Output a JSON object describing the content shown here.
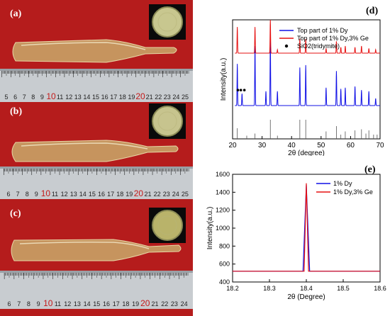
{
  "photos": [
    {
      "label": "(a)",
      "ruler_numbers": [
        "5",
        "6",
        "7",
        "8",
        "9",
        "10",
        "11",
        "12",
        "13",
        "14",
        "15",
        "16",
        "17",
        "18",
        "19",
        "20",
        "21",
        "22",
        "23",
        "24",
        "25"
      ],
      "red_numbers": [
        "10",
        "20"
      ]
    },
    {
      "label": "(b)",
      "ruler_numbers": [
        "6",
        "7",
        "8",
        "9",
        "10",
        "11",
        "12",
        "13",
        "14",
        "15",
        "16",
        "17",
        "18",
        "19",
        "20",
        "21",
        "22",
        "23",
        "24",
        "25"
      ],
      "red_numbers": [
        "10",
        "20"
      ]
    },
    {
      "label": "(c)",
      "ruler_numbers": [
        "6",
        "7",
        "8",
        "9",
        "10",
        "11",
        "12",
        "13",
        "14",
        "15",
        "16",
        "17",
        "18",
        "19",
        "20",
        "21",
        "22",
        "23",
        "24"
      ],
      "red_numbers": [
        "10",
        "20"
      ]
    }
  ],
  "colors": {
    "blue": "#1010e6",
    "red": "#e61010",
    "photo_bg": "#b51c1c"
  },
  "chart_data": [
    {
      "label": "(d)",
      "type": "line",
      "xlabel": "2θ (degree)",
      "ylabel": "Intensity(a.u.)",
      "xlim": [
        20,
        70
      ],
      "xticks": [
        20,
        30,
        40,
        50,
        60,
        70
      ],
      "legend_position": "top-right",
      "legend": [
        "Top part of 1% Dy",
        "Top part of 1% Dy,3% Ge",
        "SiO2(tridymite)"
      ],
      "series": [
        {
          "name": "Top part of 1% Dy",
          "color": "blue",
          "baseline": 0.28,
          "peaks": [
            [
              21.6,
              0.35
            ],
            [
              23.2,
              0.1
            ],
            [
              27.6,
              0.5
            ],
            [
              31.3,
              0.12
            ],
            [
              32.8,
              0.58
            ],
            [
              35.2,
              0.12
            ],
            [
              42.8,
              0.32
            ],
            [
              44.8,
              0.34
            ],
            [
              51.7,
              0.15
            ],
            [
              55.2,
              0.29
            ],
            [
              56.7,
              0.14
            ],
            [
              58.2,
              0.15
            ],
            [
              61.5,
              0.16
            ],
            [
              63.7,
              0.13
            ],
            [
              66.2,
              0.12
            ],
            [
              68.5,
              0.06
            ]
          ]
        },
        {
          "name": "Top part of 1% Dy,3% Ge",
          "color": "red",
          "baseline": 0.72,
          "peaks": [
            [
              21.6,
              0.22
            ],
            [
              27.6,
              0.22
            ],
            [
              32.8,
              0.28
            ],
            [
              35.2,
              0.03
            ],
            [
              42.8,
              0.12
            ],
            [
              44.8,
              0.12
            ],
            [
              51.7,
              0.04
            ],
            [
              55.2,
              0.1
            ],
            [
              56.7,
              0.05
            ],
            [
              58.2,
              0.06
            ],
            [
              61.5,
              0.05
            ],
            [
              63.7,
              0.06
            ],
            [
              66.2,
              0.04
            ],
            [
              68.5,
              0.03
            ]
          ]
        }
      ],
      "tridymite_markers": [
        21.8,
        22.8,
        24.0
      ],
      "reference_lines": [
        [
          21.6,
          0.5
        ],
        [
          24.8,
          0.15
        ],
        [
          27.6,
          0.25
        ],
        [
          32.8,
          0.9
        ],
        [
          35.2,
          0.15
        ],
        [
          42.8,
          0.9
        ],
        [
          44.8,
          0.9
        ],
        [
          51.7,
          0.35
        ],
        [
          55.2,
          0.6
        ],
        [
          56.7,
          0.2
        ],
        [
          58.2,
          0.35
        ],
        [
          61.5,
          0.4
        ],
        [
          63.7,
          0.45
        ],
        [
          65.2,
          0.25
        ],
        [
          66.2,
          0.4
        ],
        [
          67.8,
          0.2
        ],
        [
          69.0,
          0.2
        ]
      ]
    },
    {
      "label": "(e)",
      "type": "line",
      "xlabel": "2θ (Degree)",
      "ylabel": "Intensity(a.u.)",
      "xlim": [
        18.2,
        18.6
      ],
      "ylim": [
        400,
        1600
      ],
      "xticks": [
        "18.2",
        "18.3",
        "18.4",
        "18.5",
        "18.6"
      ],
      "yticks": [
        "400",
        "600",
        "800",
        "1000",
        "1200",
        "1400",
        "1600"
      ],
      "legend_position": "top-right",
      "series": [
        {
          "name": "1% Dy",
          "color": "blue",
          "baseline": 520,
          "peak_x": 18.4,
          "peak_y": 1480,
          "half_width": 0.009
        },
        {
          "name": "1% Dy,3% Ge",
          "color": "red",
          "baseline": 520,
          "peak_x": 18.4,
          "peak_y": 1500,
          "half_width": 0.006
        }
      ]
    }
  ]
}
